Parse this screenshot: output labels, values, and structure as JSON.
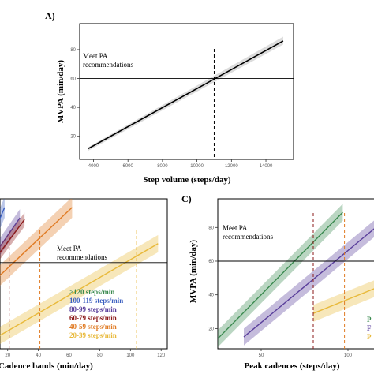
{
  "chart_data": [
    {
      "panel_label": "A)",
      "type": "line",
      "xlabel": "Step volume (steps/day)",
      "ylabel": "MVPA (min/day)",
      "x_ticks": [
        4000,
        6000,
        8000,
        10000,
        12000,
        14000
      ],
      "y_ticks": [
        20,
        40,
        60,
        80
      ],
      "xlim": [
        3200,
        15600
      ],
      "ylim": [
        4,
        98
      ],
      "series": [
        {
          "x": [
            3700,
            15000
          ],
          "y": [
            11.5,
            86
          ],
          "ci": [
            [
              10,
              12.5
            ],
            [
              83.5,
              89
            ]
          ],
          "color": "#000000"
        }
      ],
      "reference_line": {
        "y": 60,
        "label_line1": "Meet PA",
        "label_line2": "recommendations"
      },
      "threshold_line": {
        "x": 11000,
        "color": "#000000"
      }
    },
    {
      "panel_label": "",
      "type": "line",
      "xlabel": "Cadence bands (min/day)",
      "ylabel": "",
      "x_ticks": [
        20,
        40,
        60,
        80,
        100,
        120
      ],
      "y_ticks": [],
      "xlim": [
        15,
        124
      ],
      "ylim": [
        10,
        97
      ],
      "series": [
        {
          "name": "≥120 steps/min",
          "color": "#3a8a4f",
          "x": [],
          "y": []
        },
        {
          "name": "100-119 steps/min",
          "color": "#3b5fc0",
          "x": [
            0,
            18
          ],
          "y": [
            54,
            92
          ],
          "ci_width": 6
        },
        {
          "name": "80-99 steps/min",
          "color": "#5a3f9b",
          "x": [
            0,
            28
          ],
          "y": [
            50,
            86
          ],
          "ci_width": 5
        },
        {
          "name": "60-79 steps/min",
          "color": "#8b1a1a",
          "x": [
            0,
            31
          ],
          "y": [
            48,
            85
          ],
          "ci_width": 4
        },
        {
          "name": "40-59 steps/min",
          "color": "#e07b24",
          "x": [
            0,
            62
          ],
          "y": [
            40,
            92
          ],
          "ci_width": 6
        },
        {
          "name": "20-39 steps/min",
          "color": "#e8b93a",
          "x": [
            0,
            118
          ],
          "y": [
            10,
            71
          ],
          "ci_width": 5
        }
      ],
      "reference_line": {
        "y": 60,
        "label_line1": "Meet PA",
        "label_line2": "recommendations"
      },
      "threshold_lines": [
        {
          "x": 21,
          "color": "#8b1a1a"
        },
        {
          "x": 41,
          "color": "#e07b24"
        },
        {
          "x": 104,
          "color": "#e8b93a"
        }
      ]
    },
    {
      "panel_label": "C)",
      "type": "line",
      "xlabel": "Peak cadences (steps/day)",
      "ylabel": "MVPA (min/day)",
      "x_ticks": [
        50,
        100
      ],
      "y_ticks": [
        20,
        40,
        60,
        80
      ],
      "xlim": [
        25,
        115
      ],
      "ylim": [
        8,
        97
      ],
      "series": [
        {
          "color": "#3a8a4f",
          "x": [
            25,
            97
          ],
          "y": [
            14,
            89
          ],
          "ci_width": 5
        },
        {
          "color": "#5a3f9b",
          "x": [
            40,
            116
          ],
          "y": [
            15,
            80
          ],
          "ci_width": 5
        },
        {
          "color": "#e8b93a",
          "x": [
            80,
            116
          ],
          "y": [
            29,
            44
          ],
          "ci_width": 5
        }
      ],
      "reference_line": {
        "y": 60,
        "label_line1": "Meet PA",
        "label_line2": "recommendations"
      },
      "threshold_lines": [
        {
          "x": 80,
          "color": "#8b1a1a"
        },
        {
          "x": 98,
          "color": "#e07b24"
        }
      ],
      "legend_fragments": [
        {
          "text": "P",
          "color": "#3a8a4f"
        },
        {
          "text": "F",
          "color": "#5a3f9b"
        },
        {
          "text": "P",
          "color": "#e8b93a"
        }
      ]
    }
  ]
}
